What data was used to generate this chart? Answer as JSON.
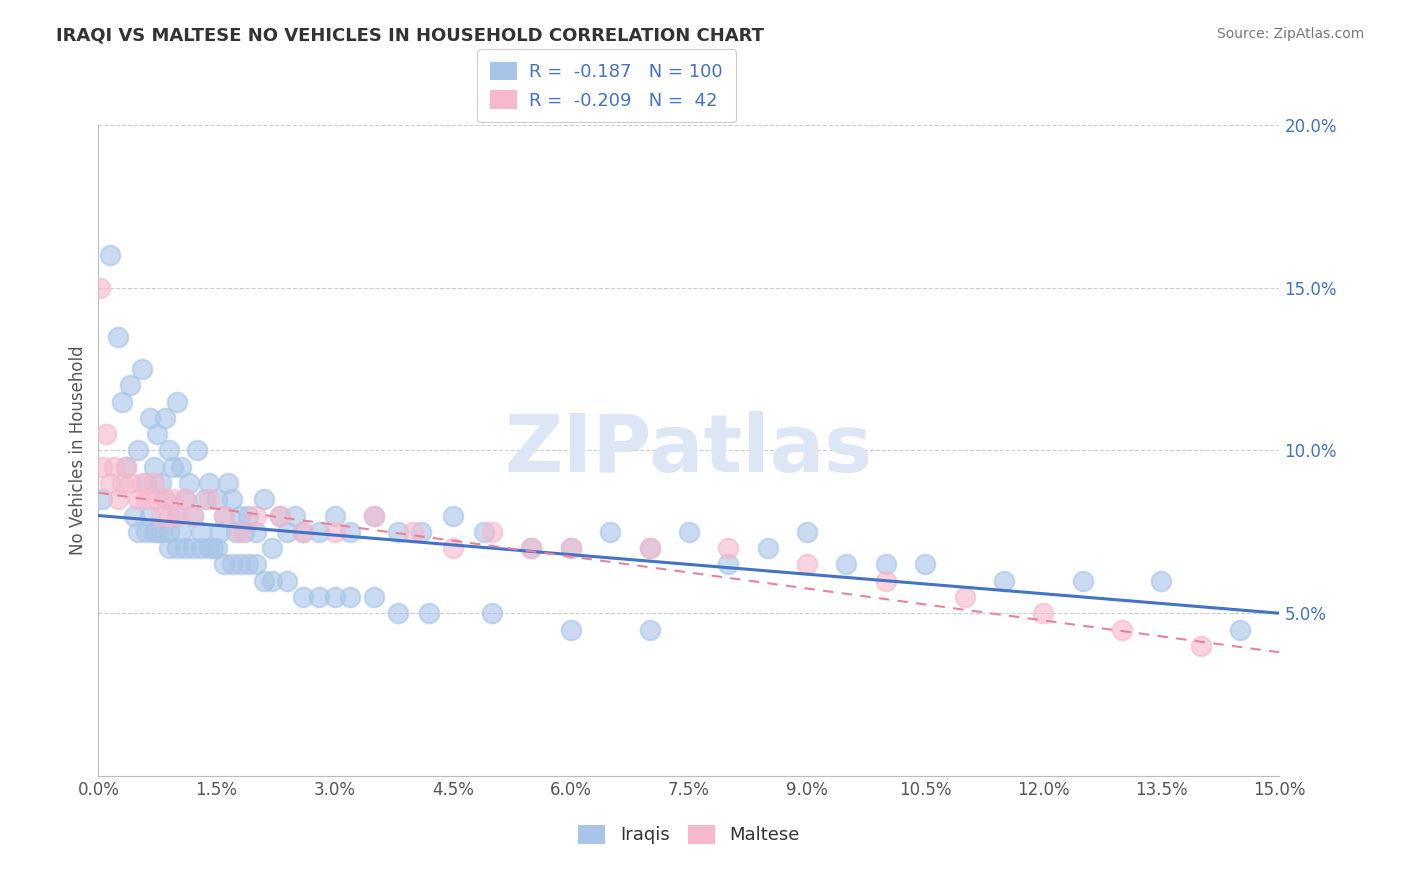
{
  "title": "IRAQI VS MALTESE NO VEHICLES IN HOUSEHOLD CORRELATION CHART",
  "source_text": "Source: ZipAtlas.com",
  "ylabel": "No Vehicles in Household",
  "xlim": [
    0.0,
    15.0
  ],
  "ylim": [
    0.0,
    20.0
  ],
  "iraqi_R": -0.187,
  "iraqi_N": 100,
  "maltese_R": -0.209,
  "maltese_N": 42,
  "iraqi_color": "#a8c4e8",
  "maltese_color": "#f5b8cc",
  "iraqi_line_color": "#4472c4",
  "maltese_line_color": "#e8829a",
  "background_color": "#ffffff",
  "watermark": "ZIPatlas",
  "watermark_color": "#dce6f5",
  "grid_color": "#cccccc",
  "title_color": "#333333",
  "iraqi_x": [
    0.05,
    0.15,
    0.25,
    0.3,
    0.35,
    0.4,
    0.45,
    0.5,
    0.55,
    0.6,
    0.65,
    0.65,
    0.7,
    0.75,
    0.75,
    0.8,
    0.85,
    0.85,
    0.9,
    0.9,
    0.95,
    1.0,
    1.0,
    1.05,
    1.05,
    1.1,
    1.15,
    1.2,
    1.25,
    1.3,
    1.35,
    1.4,
    1.45,
    1.5,
    1.55,
    1.6,
    1.65,
    1.7,
    1.75,
    1.8,
    1.85,
    1.9,
    2.0,
    2.1,
    2.2,
    2.3,
    2.4,
    2.5,
    2.6,
    2.8,
    3.0,
    3.2,
    3.5,
    3.8,
    4.1,
    4.5,
    4.9,
    5.5,
    6.0,
    6.5,
    7.0,
    7.5,
    8.0,
    8.5,
    9.0,
    9.5,
    10.0,
    10.5,
    11.5,
    12.5,
    13.5,
    14.5,
    0.5,
    0.6,
    0.7,
    0.8,
    0.9,
    1.0,
    1.1,
    1.2,
    1.3,
    1.4,
    1.5,
    1.6,
    1.7,
    1.8,
    1.9,
    2.0,
    2.1,
    2.2,
    2.4,
    2.6,
    2.8,
    3.0,
    3.2,
    3.5,
    3.8,
    4.2,
    5.0,
    6.0,
    7.0
  ],
  "iraqi_y": [
    8.5,
    16.0,
    13.5,
    11.5,
    9.5,
    12.0,
    8.0,
    10.0,
    12.5,
    9.0,
    11.0,
    8.0,
    9.5,
    10.5,
    7.5,
    9.0,
    8.5,
    11.0,
    7.5,
    10.0,
    9.5,
    8.0,
    11.5,
    7.5,
    9.5,
    8.5,
    9.0,
    8.0,
    10.0,
    7.5,
    8.5,
    9.0,
    7.0,
    8.5,
    7.5,
    8.0,
    9.0,
    8.5,
    7.5,
    8.0,
    7.5,
    8.0,
    7.5,
    8.5,
    7.0,
    8.0,
    7.5,
    8.0,
    7.5,
    7.5,
    8.0,
    7.5,
    8.0,
    7.5,
    7.5,
    8.0,
    7.5,
    7.0,
    7.0,
    7.5,
    7.0,
    7.5,
    6.5,
    7.0,
    7.5,
    6.5,
    6.5,
    6.5,
    6.0,
    6.0,
    6.0,
    4.5,
    7.5,
    7.5,
    7.5,
    7.5,
    7.0,
    7.0,
    7.0,
    7.0,
    7.0,
    7.0,
    7.0,
    6.5,
    6.5,
    6.5,
    6.5,
    6.5,
    6.0,
    6.0,
    6.0,
    5.5,
    5.5,
    5.5,
    5.5,
    5.5,
    5.0,
    5.0,
    5.0,
    4.5,
    4.5
  ],
  "maltese_x": [
    0.02,
    0.05,
    0.1,
    0.15,
    0.2,
    0.25,
    0.3,
    0.35,
    0.4,
    0.5,
    0.55,
    0.6,
    0.7,
    0.75,
    0.8,
    0.85,
    0.9,
    0.95,
    1.0,
    1.1,
    1.2,
    1.4,
    1.6,
    1.8,
    2.0,
    2.3,
    2.6,
    3.0,
    3.5,
    4.0,
    4.5,
    5.0,
    5.5,
    6.0,
    7.0,
    8.0,
    9.0,
    10.0,
    11.0,
    12.0,
    13.0,
    14.0
  ],
  "maltese_y": [
    15.0,
    9.5,
    10.5,
    9.0,
    9.5,
    8.5,
    9.0,
    9.5,
    9.0,
    8.5,
    9.0,
    8.5,
    9.0,
    8.5,
    8.0,
    8.5,
    8.0,
    8.5,
    8.0,
    8.5,
    8.0,
    8.5,
    8.0,
    7.5,
    8.0,
    8.0,
    7.5,
    7.5,
    8.0,
    7.5,
    7.0,
    7.5,
    7.0,
    7.0,
    7.0,
    7.0,
    6.5,
    6.0,
    5.5,
    5.0,
    4.5,
    4.0
  ],
  "iraqi_line_x0": 0.0,
  "iraqi_line_x1": 15.0,
  "iraqi_line_y0": 8.0,
  "iraqi_line_y1": 5.0,
  "maltese_line_x0": 0.0,
  "maltese_line_x1": 15.0,
  "maltese_line_y0": 8.7,
  "maltese_line_y1": 3.8
}
